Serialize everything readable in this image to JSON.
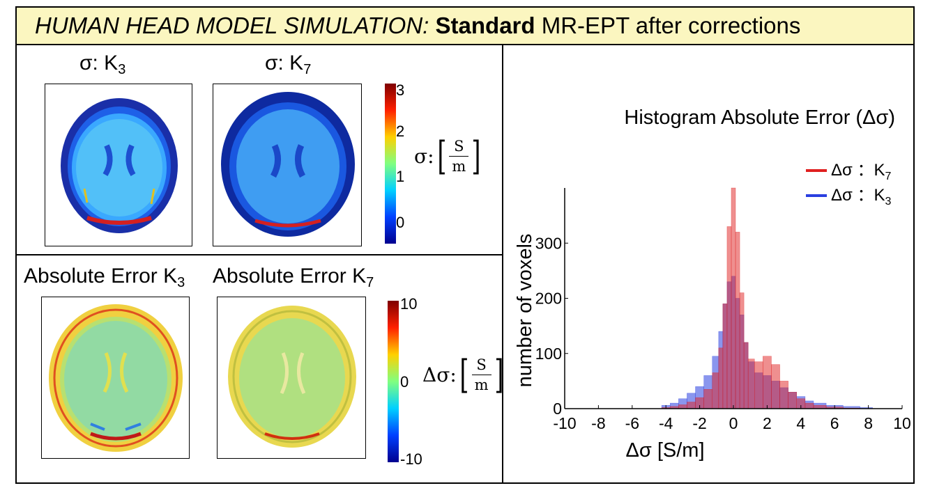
{
  "title": {
    "italic_part": "HUMAN HEAD MODEL SIMULATION:",
    "bold_part": "Standard",
    "rest": "MR-EPT after corrections",
    "background": "#fbf6c0"
  },
  "top_panel": {
    "left_label_prefix": "σ: K",
    "left_label_sub": "3",
    "right_label_prefix": "σ: K",
    "right_label_sub": "7",
    "colorbar_ticks": [
      "3",
      "2",
      "1",
      "0"
    ],
    "unit_symbol": "σ:",
    "unit_numerator": "S",
    "unit_denominator": "m"
  },
  "bottom_panel": {
    "left_label_prefix": "Absolute Error K",
    "left_label_sub": "3",
    "right_label_prefix": "Absolute Error K",
    "right_label_sub": "7",
    "colorbar_ticks": [
      "10",
      "0",
      "-10"
    ],
    "unit_symbol": "Δσ:",
    "unit_numerator": "S",
    "unit_denominator": "m"
  },
  "chart_data": {
    "type": "bar",
    "title": "Histogram Absolute Error (Δσ)",
    "xlabel": "Δσ [S/m]",
    "ylabel": "number of voxels",
    "xlim": [
      -10,
      10
    ],
    "ylim": [
      0,
      400
    ],
    "xticks": [
      "-10",
      "-8",
      "-6",
      "-4",
      "-2",
      "0",
      "2",
      "4",
      "6",
      "8",
      "10"
    ],
    "yticks": [
      "0",
      "100",
      "200",
      "300"
    ],
    "legend": [
      {
        "label": "Δσ ：K",
        "sub": "7",
        "color": "#e02020"
      },
      {
        "label": "Δσ ：K",
        "sub": "3",
        "color": "#2a3fe0"
      }
    ],
    "legend_position": "top-right",
    "x": [
      -4,
      -3.5,
      -3,
      -2.5,
      -2,
      -1.5,
      -1,
      -0.75,
      -0.5,
      -0.25,
      0,
      0.25,
      0.5,
      0.75,
      1,
      1.5,
      2,
      2.5,
      3,
      3.5,
      4,
      4.5,
      5,
      6,
      7,
      8
    ],
    "series": [
      {
        "name": "Δσ : K7",
        "color": "#e02020",
        "values": [
          2,
          4,
          7,
          12,
          20,
          35,
          65,
          110,
          190,
          330,
          400,
          320,
          210,
          120,
          90,
          85,
          95,
          80,
          50,
          30,
          18,
          10,
          6,
          3,
          1,
          0
        ]
      },
      {
        "name": "Δσ : K3",
        "color": "#2a3fe0",
        "values": [
          6,
          10,
          18,
          28,
          40,
          60,
          95,
          140,
          190,
          230,
          240,
          200,
          170,
          120,
          85,
          65,
          60,
          50,
          38,
          30,
          22,
          14,
          10,
          6,
          4,
          2
        ]
      }
    ]
  }
}
